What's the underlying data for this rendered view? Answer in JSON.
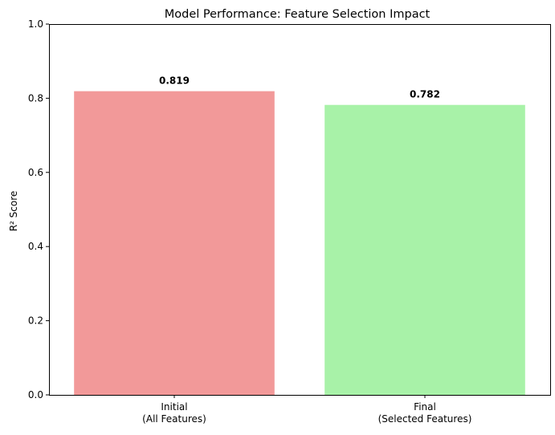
{
  "chart_data": {
    "type": "bar",
    "title": "Model Performance: Feature Selection Impact",
    "xlabel": "",
    "ylabel": "R² Score",
    "categories": [
      [
        "Initial",
        "(All Features)"
      ],
      [
        "Final",
        "(Selected Features)"
      ]
    ],
    "values": [
      0.819,
      0.782
    ],
    "value_labels": [
      "0.819",
      "0.782"
    ],
    "bar_colors": [
      "#f29999",
      "#a8f2a8"
    ],
    "ylim": [
      0,
      1
    ],
    "yticks": [
      0.0,
      0.2,
      0.4,
      0.6,
      0.8,
      1.0
    ],
    "ytick_labels": [
      "0.0",
      "0.2",
      "0.4",
      "0.6",
      "0.8",
      "1.0"
    ],
    "grid": false,
    "legend": false
  }
}
